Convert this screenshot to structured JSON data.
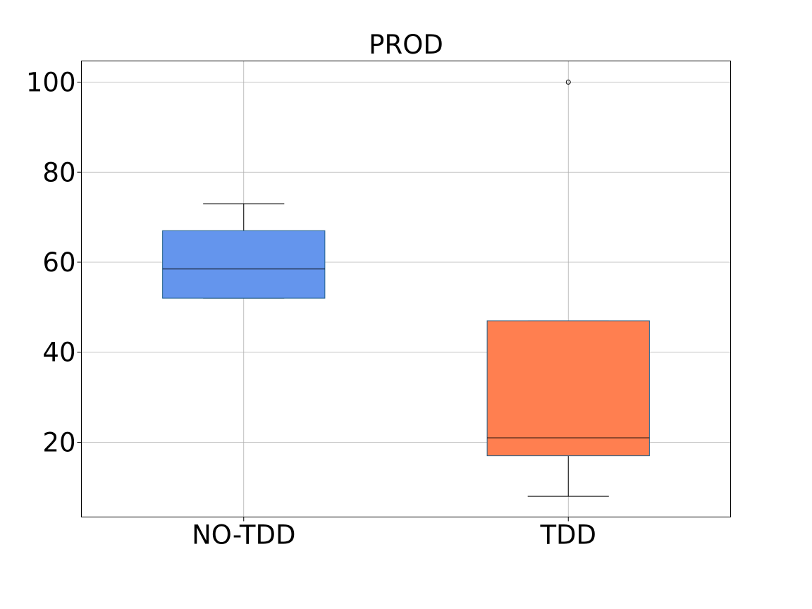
{
  "chart_data": {
    "type": "box",
    "title": "PROD",
    "xlabel": "",
    "ylabel": "",
    "categories": [
      "NO-TDD",
      "TDD"
    ],
    "ylim": [
      3.4,
      104.7
    ],
    "yticks": [
      20,
      40,
      60,
      80,
      100
    ],
    "grid": true,
    "legend": "none",
    "series": [
      {
        "category": "NO-TDD",
        "whisker_low": 52,
        "q1": 52,
        "median": 58.5,
        "q3": 67,
        "whisker_high": 73,
        "outliers": [],
        "color": "#6495ED"
      },
      {
        "category": "TDD",
        "whisker_low": 8,
        "q1": 17,
        "median": 21,
        "q3": 47,
        "whisker_high": 47,
        "outliers": [
          100
        ],
        "color": "#FF7F50"
      }
    ]
  }
}
